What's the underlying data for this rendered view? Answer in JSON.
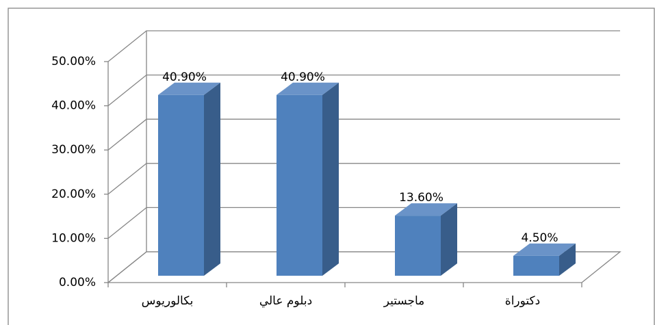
{
  "chart_data": {
    "type": "bar3d",
    "categories": [
      "بكالوريوس",
      "دبلوم عالي",
      "ماجستير",
      "دكتوراة"
    ],
    "values": [
      40.9,
      40.9,
      13.6,
      4.5
    ],
    "value_labels": [
      "40.90%",
      "40.90%",
      "13.60%",
      "4.50%"
    ],
    "color": "#4f81bd",
    "ylim": [
      0,
      50
    ],
    "yticks": [
      {
        "value": 0,
        "label": "0.00%"
      },
      {
        "value": 10,
        "label": "10.00%"
      },
      {
        "value": 20,
        "label": "20.00%"
      },
      {
        "value": 30,
        "label": "30.00%"
      },
      {
        "value": 40,
        "label": "40.00%"
      },
      {
        "value": 50,
        "label": "50.00%"
      }
    ],
    "grid": true
  }
}
